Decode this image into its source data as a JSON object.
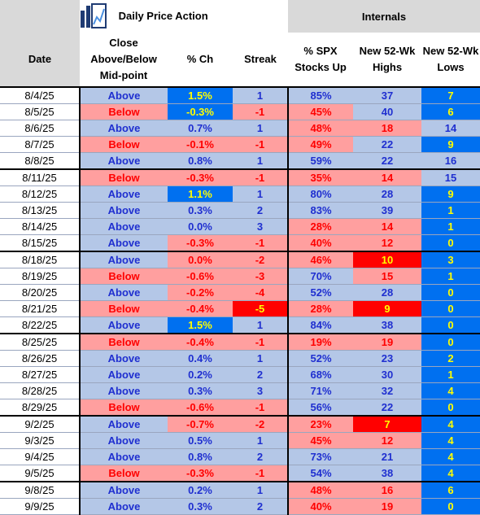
{
  "header": {
    "group1_title": "Daily Price Action",
    "group2_title": "Internals",
    "columns": [
      "Date",
      "Close Above/Below Mid-point",
      "% Ch",
      "Streak",
      "% SPX Stocks Up",
      "New 52-Wk Highs",
      "New 52-Wk Lows"
    ]
  },
  "colors": {
    "light_blue": "#b4c7e7",
    "light_red": "#ff9f9f",
    "bright_blue": "#0070f0",
    "bright_red": "#ff0000",
    "text_blue": "#1f2fd0",
    "text_red": "#ff0000",
    "text_yellow": "#ffff00"
  },
  "logo_icon": "bar-chart-trend-icon",
  "rows": [
    {
      "date": "8/4/25",
      "close": "Above",
      "pct": "1.5%",
      "streak": "1",
      "spx": "85%",
      "highs": "37",
      "lows": "7"
    },
    {
      "date": "8/5/25",
      "close": "Below",
      "pct": "-0.3%",
      "streak": "-1",
      "spx": "45%",
      "highs": "40",
      "lows": "6"
    },
    {
      "date": "8/6/25",
      "close": "Above",
      "pct": "0.7%",
      "streak": "1",
      "spx": "48%",
      "highs": "18",
      "lows": "14"
    },
    {
      "date": "8/7/25",
      "close": "Below",
      "pct": "-0.1%",
      "streak": "-1",
      "spx": "49%",
      "highs": "22",
      "lows": "9"
    },
    {
      "date": "8/8/25",
      "close": "Above",
      "pct": "0.8%",
      "streak": "1",
      "spx": "59%",
      "highs": "22",
      "lows": "16"
    },
    {
      "date": "8/11/25",
      "close": "Below",
      "pct": "-0.3%",
      "streak": "-1",
      "spx": "35%",
      "highs": "14",
      "lows": "15"
    },
    {
      "date": "8/12/25",
      "close": "Above",
      "pct": "1.1%",
      "streak": "1",
      "spx": "80%",
      "highs": "28",
      "lows": "9"
    },
    {
      "date": "8/13/25",
      "close": "Above",
      "pct": "0.3%",
      "streak": "2",
      "spx": "83%",
      "highs": "39",
      "lows": "1"
    },
    {
      "date": "8/14/25",
      "close": "Above",
      "pct": "0.0%",
      "streak": "3",
      "spx": "28%",
      "highs": "14",
      "lows": "1"
    },
    {
      "date": "8/15/25",
      "close": "Above",
      "pct": "-0.3%",
      "streak": "-1",
      "spx": "40%",
      "highs": "12",
      "lows": "0"
    },
    {
      "date": "8/18/25",
      "close": "Above",
      "pct": "0.0%",
      "streak": "-2",
      "spx": "46%",
      "highs": "10",
      "lows": "3"
    },
    {
      "date": "8/19/25",
      "close": "Below",
      "pct": "-0.6%",
      "streak": "-3",
      "spx": "70%",
      "highs": "15",
      "lows": "1"
    },
    {
      "date": "8/20/25",
      "close": "Above",
      "pct": "-0.2%",
      "streak": "-4",
      "spx": "52%",
      "highs": "28",
      "lows": "0"
    },
    {
      "date": "8/21/25",
      "close": "Below",
      "pct": "-0.4%",
      "streak": "-5",
      "spx": "28%",
      "highs": "9",
      "lows": "0"
    },
    {
      "date": "8/22/25",
      "close": "Above",
      "pct": "1.5%",
      "streak": "1",
      "spx": "84%",
      "highs": "38",
      "lows": "0"
    },
    {
      "date": "8/25/25",
      "close": "Below",
      "pct": "-0.4%",
      "streak": "-1",
      "spx": "19%",
      "highs": "19",
      "lows": "0"
    },
    {
      "date": "8/26/25",
      "close": "Above",
      "pct": "0.4%",
      "streak": "1",
      "spx": "52%",
      "highs": "23",
      "lows": "2"
    },
    {
      "date": "8/27/25",
      "close": "Above",
      "pct": "0.2%",
      "streak": "2",
      "spx": "68%",
      "highs": "30",
      "lows": "1"
    },
    {
      "date": "8/28/25",
      "close": "Above",
      "pct": "0.3%",
      "streak": "3",
      "spx": "71%",
      "highs": "32",
      "lows": "4"
    },
    {
      "date": "8/29/25",
      "close": "Below",
      "pct": "-0.6%",
      "streak": "-1",
      "spx": "56%",
      "highs": "22",
      "lows": "0"
    },
    {
      "date": "9/2/25",
      "close": "Above",
      "pct": "-0.7%",
      "streak": "-2",
      "spx": "23%",
      "highs": "7",
      "lows": "4"
    },
    {
      "date": "9/3/25",
      "close": "Above",
      "pct": "0.5%",
      "streak": "1",
      "spx": "45%",
      "highs": "12",
      "lows": "4"
    },
    {
      "date": "9/4/25",
      "close": "Above",
      "pct": "0.8%",
      "streak": "2",
      "spx": "73%",
      "highs": "21",
      "lows": "4"
    },
    {
      "date": "9/5/25",
      "close": "Below",
      "pct": "-0.3%",
      "streak": "-1",
      "spx": "54%",
      "highs": "38",
      "lows": "4"
    },
    {
      "date": "9/8/25",
      "close": "Above",
      "pct": "0.2%",
      "streak": "1",
      "spx": "48%",
      "highs": "16",
      "lows": "6"
    },
    {
      "date": "9/9/25",
      "close": "Above",
      "pct": "0.3%",
      "streak": "2",
      "spx": "40%",
      "highs": "19",
      "lows": "0"
    }
  ]
}
